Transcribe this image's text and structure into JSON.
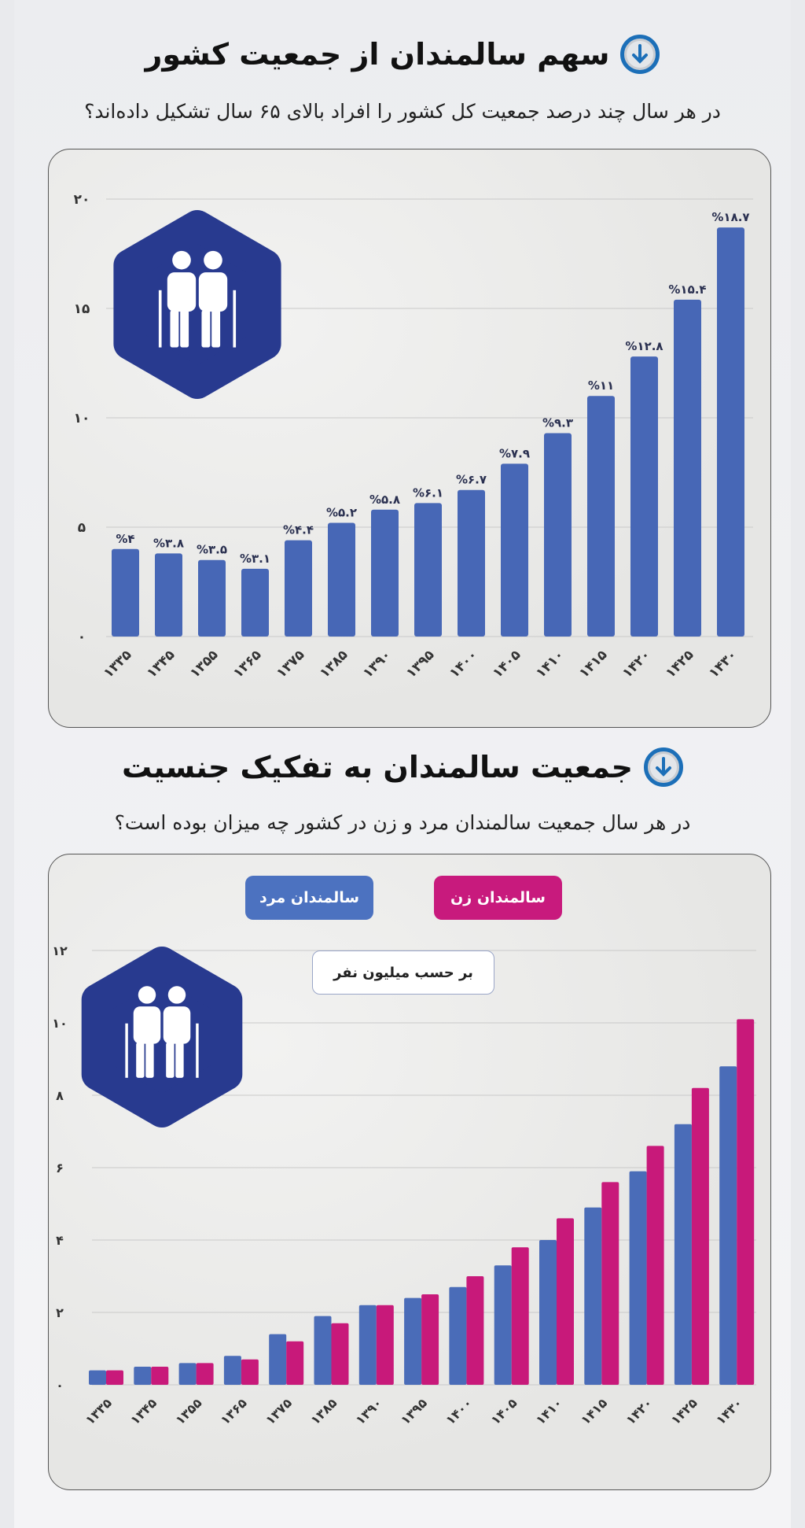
{
  "section1": {
    "title": "سهم سالمندان از جمعیت کشور",
    "subtitle": "در هر سال چند درصد جمعیت کل کشور را افراد بالای ۶۵ سال تشکیل داده‌اند؟",
    "icon": "arrow-down-circle-icon"
  },
  "section2": {
    "title": "جمعیت سالمندان به تفکیک جنسیت",
    "subtitle": "در هر سال جمعیت سالمندان مرد و زن در کشور چه میزان بوده است؟",
    "icon": "arrow-down-circle-icon",
    "unit_label": "بر حسب میلیون نفر"
  },
  "chart_data": [
    {
      "type": "bar",
      "title": "",
      "xlabel": "",
      "ylabel": "",
      "ylim": [
        0,
        20
      ],
      "grid": true,
      "yticks": [
        0,
        5,
        10,
        15,
        20
      ],
      "ytick_labels": [
        "۰",
        "۵",
        "۱۰",
        "۱۵",
        "۲۰"
      ],
      "categories": [
        "۱۳۳۵",
        "۱۳۴۵",
        "۱۳۵۵",
        "۱۳۶۵",
        "۱۳۷۵",
        "۱۳۸۵",
        "۱۳۹۰",
        "۱۳۹۵",
        "۱۴۰۰",
        "۱۴۰۵",
        "۱۴۱۰",
        "۱۴۱۵",
        "۱۴۲۰",
        "۱۴۲۵",
        "۱۴۳۰"
      ],
      "values": [
        4,
        3.8,
        3.5,
        3.1,
        4.4,
        5.2,
        5.8,
        6.1,
        6.7,
        7.9,
        9.3,
        11,
        12.8,
        15.4,
        18.7
      ],
      "data_labels": [
        "%۴",
        "%۳.۸",
        "%۳.۵",
        "%۳.۱",
        "%۴.۴",
        "%۵.۲",
        "%۵.۸",
        "%۶.۱",
        "%۶.۷",
        "%۷.۹",
        "%۹.۳",
        "%۱۱",
        "%۱۲.۸",
        "%۱۵.۴",
        "%۱۸.۷"
      ],
      "color": "#4767b6"
    },
    {
      "type": "bar",
      "title": "",
      "xlabel": "",
      "ylabel": "",
      "ylim": [
        0,
        12
      ],
      "grid": true,
      "legend": "top",
      "yticks": [
        0,
        2,
        4,
        6,
        8,
        10,
        12
      ],
      "ytick_labels": [
        "۰",
        "۲",
        "۴",
        "۶",
        "۸",
        "۱۰",
        "۱۲"
      ],
      "categories": [
        "۱۳۳۵",
        "۱۳۴۵",
        "۱۳۵۵",
        "۱۳۶۵",
        "۱۳۷۵",
        "۱۳۸۵",
        "۱۳۹۰",
        "۱۳۹۵",
        "۱۴۰۰",
        "۱۴۰۵",
        "۱۴۱۰",
        "۱۴۱۵",
        "۱۴۲۰",
        "۱۴۲۵",
        "۱۴۳۰"
      ],
      "series": [
        {
          "name": "سالمندان مرد",
          "color": "#4a6cb8",
          "values": [
            0.4,
            0.5,
            0.6,
            0.8,
            1.4,
            1.9,
            2.2,
            2.4,
            2.7,
            3.3,
            4.0,
            4.9,
            5.9,
            7.2,
            8.8
          ]
        },
        {
          "name": "سالمندان زن",
          "color": "#c8197a",
          "values": [
            0.4,
            0.5,
            0.6,
            0.7,
            1.2,
            1.7,
            2.2,
            2.5,
            3.0,
            3.8,
            4.6,
            5.6,
            6.6,
            8.2,
            10.1
          ]
        }
      ]
    }
  ],
  "colors": {
    "hexagon": "#283a8f",
    "icon_accent": "#1c6fb8"
  }
}
